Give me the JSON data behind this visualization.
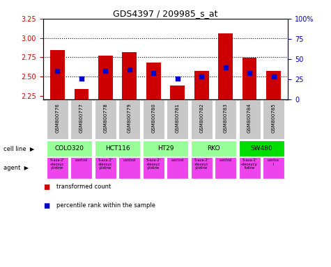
{
  "title": "GDS4397 / 209985_s_at",
  "samples": [
    "GSM800776",
    "GSM800777",
    "GSM800778",
    "GSM800779",
    "GSM800780",
    "GSM800781",
    "GSM800782",
    "GSM800783",
    "GSM800784",
    "GSM800785"
  ],
  "transformed_count": [
    2.84,
    2.34,
    2.77,
    2.82,
    2.68,
    2.38,
    2.57,
    3.06,
    2.74,
    2.57
  ],
  "percentile_y": [
    2.57,
    2.47,
    2.57,
    2.59,
    2.55,
    2.47,
    2.5,
    2.62,
    2.55,
    2.5
  ],
  "ylim_min": 2.2,
  "ylim_max": 3.25,
  "yticks_left": [
    2.25,
    2.5,
    2.75,
    3.0,
    3.25
  ],
  "yticks_right_vals": [
    0,
    25,
    50,
    75,
    100
  ],
  "yticks_right_labels": [
    "0",
    "25",
    "50",
    "75",
    "100%"
  ],
  "bar_color": "#cc0000",
  "dot_color": "#0000cc",
  "sample_bg_color": "#c8c8c8",
  "cell_lines": [
    {
      "name": "COLO320",
      "c1": 0,
      "c2": 1,
      "color": "#99ff99"
    },
    {
      "name": "HCT116",
      "c1": 2,
      "c2": 3,
      "color": "#99ff99"
    },
    {
      "name": "HT29",
      "c1": 4,
      "c2": 5,
      "color": "#99ff99"
    },
    {
      "name": "RKO",
      "c1": 6,
      "c2": 7,
      "color": "#99ff99"
    },
    {
      "name": "SW480",
      "c1": 8,
      "c2": 9,
      "color": "#00dd00"
    }
  ],
  "agent_labels": [
    "5-aza-2'\n-deoxyc\nytidine",
    "control",
    "5-aza-2'\n-deoxyc\nytidine",
    "control",
    "5-aza-2'\n-deoxyc\nytidine",
    "control",
    "5-aza-2'\n-deoxyc\nytidine",
    "control",
    "5-aza-2'\n-deoxycy\ntidine",
    "contro\nl"
  ],
  "agent_color": "#ee44ee",
  "right_axis_color": "#0000bb",
  "left_axis_color": "#cc0000",
  "grid_color": "#000000",
  "fig_bg": "#ffffff",
  "grid_yticks": [
    2.5,
    2.75,
    3.0
  ],
  "bar_width": 0.6
}
